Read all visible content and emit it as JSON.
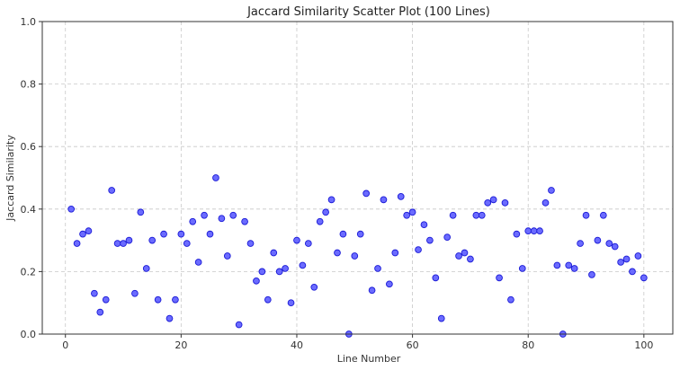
{
  "chart_data": {
    "type": "scatter",
    "title": "Jaccard Similarity Scatter Plot (100 Lines)",
    "xlabel": "Line Number",
    "ylabel": "Jaccard Similarity",
    "xlim": [
      -4,
      105
    ],
    "ylim": [
      0,
      1.0
    ],
    "xticks": [
      0,
      20,
      40,
      60,
      80,
      100
    ],
    "yticks": [
      0.0,
      0.2,
      0.4,
      0.6,
      0.8,
      1.0
    ],
    "xtick_labels": [
      "0",
      "20",
      "40",
      "60",
      "80",
      "100"
    ],
    "ytick_labels": [
      "0.0",
      "0.2",
      "0.4",
      "0.6",
      "0.8",
      "1.0"
    ],
    "grid": true,
    "marker_color": "#6b6bff",
    "marker_edge_color": "#1a1ad6",
    "x": [
      1,
      2,
      3,
      4,
      5,
      6,
      7,
      8,
      9,
      10,
      11,
      12,
      13,
      14,
      15,
      16,
      17,
      18,
      19,
      20,
      21,
      22,
      23,
      24,
      25,
      26,
      27,
      28,
      29,
      30,
      31,
      32,
      33,
      34,
      35,
      36,
      37,
      38,
      39,
      40,
      41,
      42,
      43,
      44,
      45,
      46,
      47,
      48,
      49,
      50,
      51,
      52,
      53,
      54,
      55,
      56,
      57,
      58,
      59,
      60,
      61,
      62,
      63,
      64,
      65,
      66,
      67,
      68,
      69,
      70,
      71,
      72,
      73,
      74,
      75,
      76,
      77,
      78,
      79,
      80,
      81,
      82,
      83,
      84,
      85,
      86,
      87,
      88,
      89,
      90,
      91,
      92,
      93,
      94,
      95,
      96,
      97,
      98,
      99,
      100
    ],
    "y": [
      0.4,
      0.29,
      0.32,
      0.33,
      0.13,
      0.07,
      0.11,
      0.46,
      0.29,
      0.29,
      0.3,
      0.13,
      0.39,
      0.21,
      0.3,
      0.11,
      0.32,
      0.05,
      0.11,
      0.32,
      0.29,
      0.36,
      0.23,
      0.38,
      0.32,
      0.5,
      0.37,
      0.25,
      0.38,
      0.03,
      0.36,
      0.29,
      0.17,
      0.2,
      0.11,
      0.26,
      0.2,
      0.21,
      0.1,
      0.3,
      0.22,
      0.29,
      0.15,
      0.36,
      0.39,
      0.43,
      0.26,
      0.32,
      0.0,
      0.25,
      0.32,
      0.45,
      0.14,
      0.21,
      0.43,
      0.16,
      0.26,
      0.44,
      0.38,
      0.39,
      0.27,
      0.35,
      0.3,
      0.18,
      0.05,
      0.31,
      0.38,
      0.25,
      0.26,
      0.24,
      0.38,
      0.38,
      0.42,
      0.43,
      0.18,
      0.42,
      0.11,
      0.32,
      0.21,
      0.33,
      0.33,
      0.33,
      0.42,
      0.46,
      0.22,
      0.0,
      0.22,
      0.21,
      0.29,
      0.38,
      0.19,
      0.3,
      0.38,
      0.29,
      0.28,
      0.23,
      0.24,
      0.2,
      0.25,
      0.18
    ]
  }
}
